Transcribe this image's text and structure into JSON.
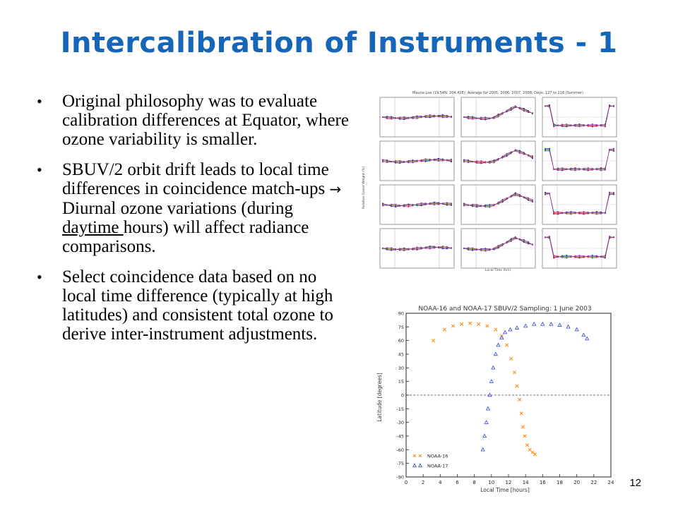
{
  "slide": {
    "title": "Intercalibration of Instruments - 1",
    "page_number": "12"
  },
  "bullets": [
    {
      "text": "Original philosophy was to evaluate calibration differences at Equator, where ozone variability is smaller."
    },
    {
      "part1": "SBUV/2 orbit drift leads to local time differences in coincidence match-ups ",
      "arrow": "→",
      "part2": " Diurnal ozone variations (during ",
      "underlined": "daytime ",
      "part3": "hours) will affect radiance comparisons."
    },
    {
      "text": "Select coincidence data based on no local time difference (typically at high latitudes) and consistent total ozone to derive inter-instrument adjustments."
    }
  ],
  "figure1": {
    "header": "Mauna Loa (19.54N, 204.42E); Average for 2005, 2006, 2007, 2008; Days: 127 to 218 (Summer)",
    "ylabel": "Relative Ozone Weight (%)",
    "xlabel": "Local Time (hrs)",
    "colors": {
      "y2005": "#2222cc",
      "y2006": "#cc2222",
      "y2007": "#22aa22",
      "y2008": "#aa22aa"
    }
  },
  "chart_data": {
    "type": "scatter",
    "title": "NOAA-16 and NOAA-17 SBUV/2 Sampling:  1 June 2003",
    "xlabel": "Local Time [hours]",
    "ylabel": "Latitude [degrees]",
    "xlim": [
      0,
      24
    ],
    "ylim": [
      -90,
      90
    ],
    "x_ticks": [
      0,
      2,
      4,
      6,
      8,
      10,
      12,
      14,
      16,
      18,
      20,
      22,
      24
    ],
    "y_ticks": [
      -90,
      -75,
      -60,
      -45,
      -30,
      -15,
      0,
      15,
      30,
      45,
      60,
      75,
      90
    ],
    "legend_position": "bottom-left",
    "series": [
      {
        "name": "NOAA-16",
        "marker": "x",
        "color": "#ff8c1a",
        "x": [
          3.2,
          4.5,
          5.5,
          6.5,
          7.5,
          8.5,
          9.5,
          10.5,
          11.2,
          11.8,
          12.3,
          12.7,
          13.0,
          13.3,
          13.5,
          13.7,
          13.9,
          14.2,
          14.5,
          14.8,
          15.1
        ],
        "y": [
          60,
          72,
          76,
          78,
          79,
          78,
          76,
          72,
          65,
          55,
          40,
          25,
          10,
          -5,
          -20,
          -35,
          -45,
          -55,
          -60,
          -63,
          -65
        ]
      },
      {
        "name": "NOAA-17",
        "marker": "triangle",
        "color": "#3340d6",
        "x": [
          9.0,
          9.2,
          9.4,
          9.6,
          9.8,
          10.0,
          10.2,
          10.5,
          10.8,
          11.2,
          11.6,
          12.2,
          13.0,
          14.0,
          15.0,
          16.0,
          17.0,
          18.0,
          19.0,
          20.0,
          20.8,
          21.2
        ],
        "y": [
          -60,
          -45,
          -30,
          -15,
          0,
          15,
          30,
          45,
          55,
          63,
          69,
          72,
          74,
          76,
          78,
          78,
          78,
          77,
          75,
          72,
          66,
          62
        ]
      }
    ]
  }
}
